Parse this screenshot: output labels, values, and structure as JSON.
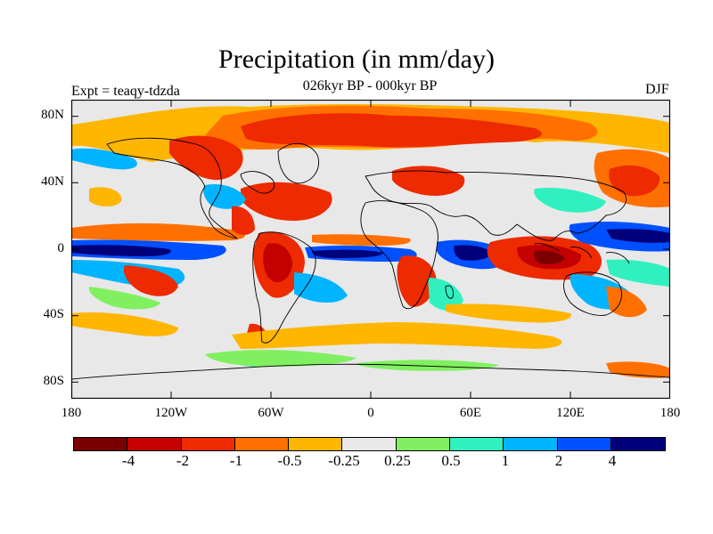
{
  "title": "Precipitation (in mm/day)",
  "subtitle": "026kyr BP - 000kyr BP",
  "experiment": "Expt = teaqy-tdzda",
  "season": "DJF",
  "lat_labels": [
    "80N",
    "40N",
    "0",
    "40S",
    "80S"
  ],
  "lon_labels": [
    "180",
    "120W",
    "60W",
    "0",
    "60E",
    "120E",
    "180"
  ],
  "colorbar": {
    "colors": [
      "#7a0000",
      "#c40000",
      "#ee2a00",
      "#ff7000",
      "#ffb600",
      "#e8e8e8",
      "#80f060",
      "#30f0c0",
      "#00b4ff",
      "#0050ff",
      "#00007a"
    ],
    "labels": [
      "-4",
      "-2",
      "-1",
      "-0.5",
      "-0.25",
      "0.25",
      "0.5",
      "1",
      "2",
      "4"
    ]
  },
  "colors": {
    "dry_strong": "#c40000",
    "dry_mid": "#ee2a00",
    "dry_weak": "#ff7000",
    "dry_slight": "#ffb600",
    "neutral": "#e8e8e8",
    "wet_slight": "#80f060",
    "wet_weak": "#30f0c0",
    "wet_mid": "#00b4ff",
    "wet_strong": "#0050ff",
    "wet_max": "#00007a",
    "dry_max": "#7a0000"
  }
}
